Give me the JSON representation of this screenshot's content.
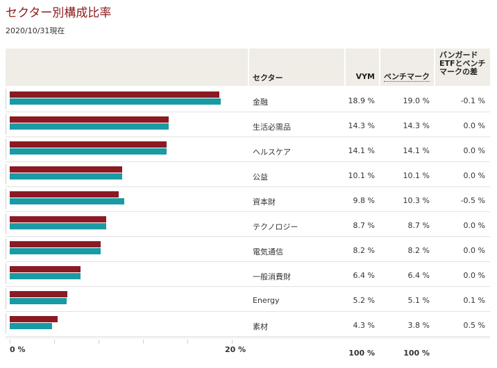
{
  "page": {
    "title": "セクター別構成比率",
    "as_of": "2020/10/31現在"
  },
  "table": {
    "headers": {
      "sector": "セクター",
      "vym": "VYM",
      "benchmark": "ベンチマーク",
      "diff": "バンガード ETFとベンチ マークの差"
    },
    "rows": [
      {
        "sector": "金融",
        "vym": "18.9 %",
        "bench": "19.0 %",
        "diff": "-0.1 %"
      },
      {
        "sector": "生活必需品",
        "vym": "14.3 %",
        "bench": "14.3 %",
        "diff": "0.0 %"
      },
      {
        "sector": "ヘルスケア",
        "vym": "14.1 %",
        "bench": "14.1 %",
        "diff": "0.0 %"
      },
      {
        "sector": "公益",
        "vym": "10.1 %",
        "bench": "10.1 %",
        "diff": "0.0 %"
      },
      {
        "sector": "資本財",
        "vym": "9.8 %",
        "bench": "10.3 %",
        "diff": "-0.5 %"
      },
      {
        "sector": "テクノロジー",
        "vym": "8.7 %",
        "bench": "8.7 %",
        "diff": "0.0 %"
      },
      {
        "sector": "電気通信",
        "vym": "8.2 %",
        "bench": "8.2 %",
        "diff": "0.0 %"
      },
      {
        "sector": "一般消費財",
        "vym": "6.4 %",
        "bench": "6.4 %",
        "diff": "0.0 %"
      },
      {
        "sector": "Energy",
        "vym": "5.2 %",
        "bench": "5.1 %",
        "diff": "0.1 %"
      },
      {
        "sector": "素材",
        "vym": "4.3 %",
        "bench": "3.8 %",
        "diff": "0.5 %"
      }
    ],
    "totals": {
      "vym": "100 %",
      "bench": "100 %"
    }
  },
  "axis": {
    "min_label": "0 %",
    "max_label": "20 %"
  },
  "colors": {
    "vym": "#8b1a24",
    "benchmark": "#1a9aa3",
    "title": "#8b1a1a",
    "header_bg": "#f0ede6"
  },
  "chart_data": {
    "type": "bar",
    "orientation": "horizontal",
    "categories": [
      "金融",
      "生活必需品",
      "ヘルスケア",
      "公益",
      "資本財",
      "テクノロジー",
      "電気通信",
      "一般消費財",
      "Energy",
      "素材"
    ],
    "series": [
      {
        "name": "VYM",
        "values": [
          18.9,
          14.3,
          14.1,
          10.1,
          9.8,
          8.7,
          8.2,
          6.4,
          5.2,
          4.3
        ]
      },
      {
        "name": "ベンチマーク",
        "values": [
          19.0,
          14.3,
          14.1,
          10.1,
          10.3,
          8.7,
          8.2,
          6.4,
          5.1,
          3.8
        ]
      }
    ],
    "title": "セクター別構成比率",
    "xlim": [
      0,
      20
    ],
    "x_ticks": [
      "0 %",
      "20 %"
    ],
    "grid": false
  }
}
